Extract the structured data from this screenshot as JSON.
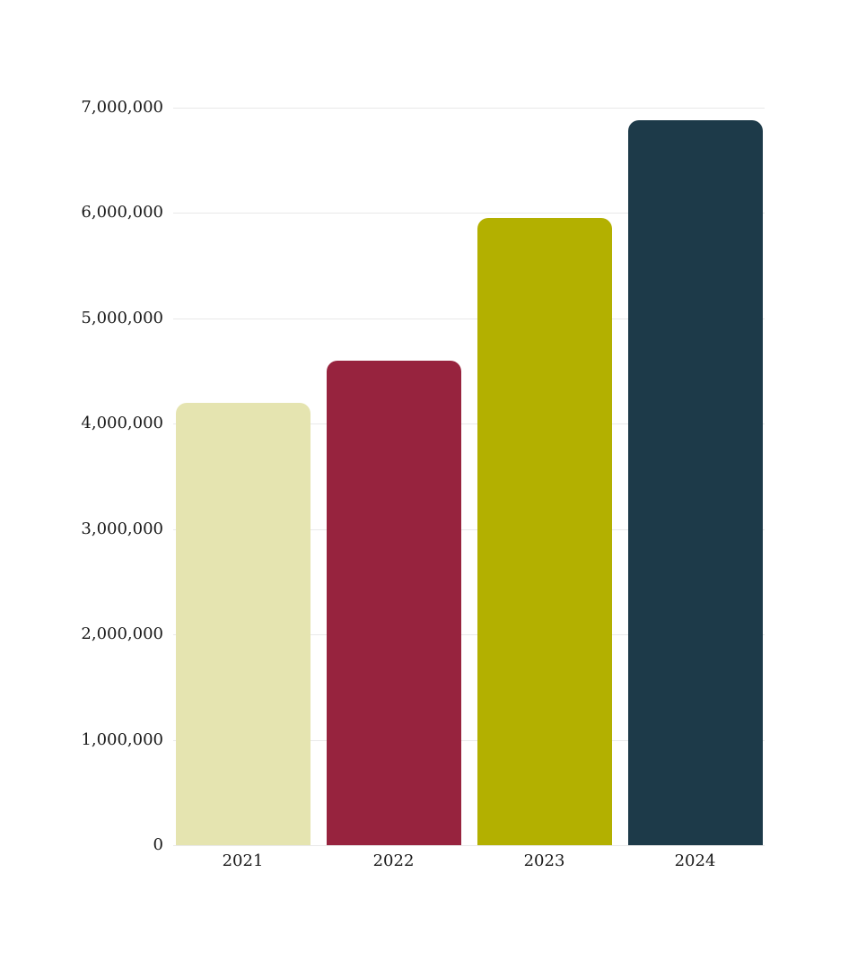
{
  "chart_data": {
    "type": "bar",
    "title": "",
    "xlabel": "",
    "ylabel": "",
    "categories": [
      "2021",
      "2022",
      "2023",
      "2024"
    ],
    "values": [
      4200000,
      4600000,
      5950000,
      6880000
    ],
    "bar_colors": [
      "#E5E4B0",
      "#97233E",
      "#B3B000",
      "#1D3A49"
    ],
    "ylim": [
      0,
      7000000
    ],
    "ytick_values": [
      0,
      1000000,
      2000000,
      3000000,
      4000000,
      5000000,
      6000000,
      7000000
    ],
    "ytick_labels": [
      "0",
      "1,000,000",
      "2,000,000",
      "3,000,000",
      "4,000,000",
      "5,000,000",
      "6,000,000",
      "7,000,000"
    ],
    "grid": true,
    "legend": "none",
    "colors": {
      "background": "#FFFFFF",
      "gridline": "#E9E9E9",
      "tick_text": "#1A1A1A"
    }
  }
}
